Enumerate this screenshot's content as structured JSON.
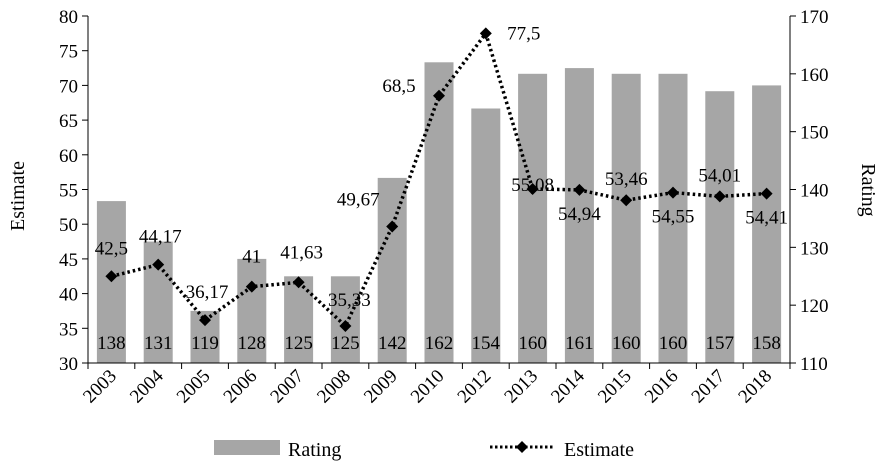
{
  "chart_data": {
    "type": "bar+line",
    "categories": [
      "2003",
      "2004",
      "2005",
      "2006",
      "2007",
      "2008",
      "2009",
      "2010",
      "2012",
      "2013",
      "2014",
      "2015",
      "2016",
      "2017",
      "2018"
    ],
    "series": [
      {
        "name": "Rating",
        "type": "bar",
        "axis": "right",
        "color": "#a6a6a6",
        "values": [
          138,
          131,
          119,
          128,
          125,
          125,
          142,
          162,
          154,
          160,
          161,
          160,
          160,
          157,
          158
        ],
        "labels": [
          "138",
          "131",
          "119",
          "128",
          "125",
          "125",
          "142",
          "162",
          "154",
          "160",
          "161",
          "160",
          "160",
          "157",
          "158"
        ]
      },
      {
        "name": "Estimate",
        "type": "line",
        "axis": "left",
        "color": "#000000",
        "line_style": "dotted",
        "marker": "diamond",
        "values": [
          42.5,
          44.17,
          36.17,
          41,
          41.63,
          35.33,
          49.67,
          68.5,
          77.5,
          55.08,
          54.94,
          53.46,
          54.55,
          54.01,
          54.41
        ],
        "labels": [
          "42,5",
          "44,17",
          "36,17",
          "41",
          "41,63",
          "35,33",
          "49,67",
          "68,5",
          "77,5",
          "55,08",
          "54,94",
          "53,46",
          "54,55",
          "54,01",
          "54,41"
        ]
      }
    ],
    "left_axis": {
      "label": "Estimate",
      "min": 30,
      "max": 80,
      "step": 5,
      "ticks": [
        "30",
        "35",
        "40",
        "45",
        "50",
        "55",
        "60",
        "65",
        "70",
        "75",
        "80"
      ]
    },
    "right_axis": {
      "label": "Rating",
      "min": 110,
      "max": 170,
      "step": 10,
      "ticks": [
        "110",
        "120",
        "130",
        "140",
        "150",
        "160",
        "170"
      ]
    },
    "grid": false,
    "legend": {
      "position": "bottom",
      "items": [
        "Rating",
        "Estimate"
      ]
    }
  }
}
